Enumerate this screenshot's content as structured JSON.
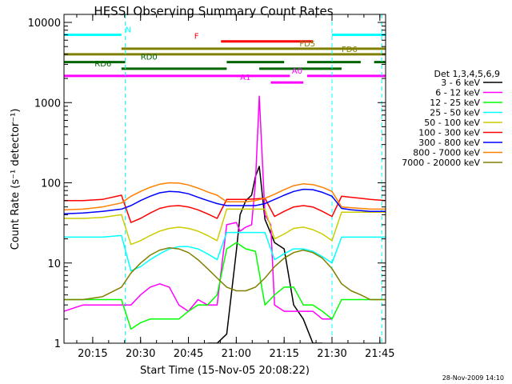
{
  "chart_data": {
    "type": "line",
    "title": "HESSI Observing Summary Count Rates",
    "xlabel": "Start Time (15-Nov-05 20:08:22)",
    "ylabel": "Count Rate (s⁻¹ detector⁻¹)",
    "yscale": "log",
    "ylim": [
      1,
      10000
    ],
    "xlim_minutes": [
      20.1,
      21.78
    ],
    "timestamp": "28-Nov-2009 14:10",
    "x_ticks": [
      {
        "m": 15,
        "label": "20:15"
      },
      {
        "m": 30,
        "label": "20:30"
      },
      {
        "m": 45,
        "label": "20:45"
      },
      {
        "m": 60,
        "label": "21:00"
      },
      {
        "m": 75,
        "label": "21:15"
      },
      {
        "m": 90,
        "label": "21:30"
      },
      {
        "m": 105,
        "label": "21:45"
      }
    ],
    "y_ticks": [
      {
        "v": 1,
        "label": "1"
      },
      {
        "v": 10,
        "label": "10"
      },
      {
        "v": 100,
        "label": "100"
      },
      {
        "v": 1000,
        "label": "1000"
      },
      {
        "v": 10000,
        "label": "10000"
      }
    ],
    "legend": {
      "title": "Det 1,3,4,5,6,9",
      "placement": "right",
      "entries": [
        {
          "label": "3 - 6 keV",
          "color": "#000000"
        },
        {
          "label": "6 - 12 keV",
          "color": "#ff00ff"
        },
        {
          "label": "12 - 25 keV",
          "color": "#00ff00"
        },
        {
          "label": "25 - 50 keV",
          "color": "#00ffff"
        },
        {
          "label": "50 - 100 keV",
          "color": "#cccc00"
        },
        {
          "label": "100 - 300 keV",
          "color": "#ff0000"
        },
        {
          "label": "300 - 800 keV",
          "color": "#0000ff"
        },
        {
          "label": "800 - 7000 keV",
          "color": "#ff8000"
        },
        {
          "label": "7000 - 20000 keV",
          "color": "#808000"
        }
      ]
    },
    "flag_bars": [
      {
        "label": "N",
        "color": "#00ffff",
        "y": 7000,
        "segments": [
          [
            20.1,
            20.4
          ],
          [
            21.5,
            21.78
          ]
        ],
        "label_at": 20.42
      },
      {
        "label": "F",
        "color": "#ff0000",
        "y": 5800,
        "segments": [
          [
            20.92,
            21.4
          ]
        ],
        "label_at": 20.78
      },
      {
        "label": "FD5",
        "color": "#808000",
        "y": 4700,
        "segments": [
          [
            20.4,
            21.78
          ]
        ],
        "label_at": 21.33
      },
      {
        "label": "FD6",
        "color": "#808000",
        "y": 4000,
        "segments": [
          [
            20.1,
            21.78
          ]
        ],
        "label_at": 21.55
      },
      {
        "label": "RD0",
        "color": "#006400",
        "y": 3200,
        "segments": [
          [
            20.1,
            20.42
          ],
          [
            20.95,
            21.25
          ],
          [
            21.37,
            21.65
          ],
          [
            21.72,
            21.78
          ]
        ],
        "label_at": 20.5
      },
      {
        "label": "RD6",
        "color": "#006400",
        "y": 2650,
        "segments": [
          [
            20.4,
            20.95
          ],
          [
            21.12,
            21.55
          ]
        ],
        "label_at": 20.26
      },
      {
        "label": "A0",
        "color": "#ff00ff",
        "y": 2150,
        "segments": [
          [
            20.1,
            21.28
          ],
          [
            21.37,
            21.78
          ]
        ],
        "label_at": 21.29
      },
      {
        "label": "A1",
        "color": "#ff00ff",
        "y": 1780,
        "segments": [
          [
            21.18,
            21.35
          ]
        ],
        "label_at": 21.02
      }
    ],
    "dashed_lines": [
      {
        "x": 20.1,
        "color": "#00ffff"
      },
      {
        "x": 20.42,
        "color": "#00ffff"
      },
      {
        "x": 21.5,
        "color": "#00ffff"
      },
      {
        "x": 21.76,
        "color": "#00ffff"
      }
    ],
    "series": [
      {
        "name": "3 - 6 keV",
        "color": "#000000",
        "x": [
          20.85,
          20.9,
          20.95,
          21.0,
          21.02,
          21.05,
          21.08,
          21.1,
          21.12,
          21.15,
          21.2,
          21.25,
          21.3,
          21.35,
          21.4,
          21.45
        ],
        "y": [
          1,
          1,
          1.3,
          14,
          40,
          60,
          70,
          120,
          160,
          35,
          18,
          15,
          3,
          2,
          1,
          1
        ]
      },
      {
        "name": "6 - 12 keV",
        "color": "#ff00ff",
        "x": [
          20.1,
          20.2,
          20.3,
          20.4,
          20.45,
          20.5,
          20.55,
          20.6,
          20.65,
          20.7,
          20.75,
          20.8,
          20.85,
          20.9,
          20.95,
          21.0,
          21.02,
          21.05,
          21.08,
          21.1,
          21.12,
          21.15,
          21.18,
          21.2,
          21.25,
          21.3,
          21.35,
          21.4,
          21.45,
          21.5
        ],
        "y": [
          2.5,
          3,
          3,
          3,
          3,
          4,
          5,
          5.5,
          5,
          3,
          2.5,
          3.5,
          3,
          3,
          30,
          32,
          25,
          28,
          30,
          100,
          1200,
          40,
          30,
          3,
          2.5,
          2.5,
          2.5,
          2.5,
          2,
          2
        ]
      },
      {
        "name": "12 - 25 keV",
        "color": "#00ff00",
        "x": [
          20.1,
          20.2,
          20.3,
          20.4,
          20.45,
          20.5,
          20.55,
          20.6,
          20.65,
          20.7,
          20.75,
          20.8,
          20.85,
          20.9,
          20.95,
          21.0,
          21.05,
          21.1,
          21.15,
          21.2,
          21.25,
          21.3,
          21.35,
          21.4,
          21.45,
          21.5,
          21.55,
          21.6,
          21.65,
          21.7,
          21.78
        ],
        "y": [
          3.5,
          3.5,
          3.5,
          3.5,
          1.5,
          1.8,
          2,
          2,
          2,
          2,
          2.5,
          3,
          3,
          4,
          15,
          18,
          15,
          14,
          3,
          4,
          5,
          5,
          3,
          3,
          2.5,
          2,
          3.5,
          3.5,
          3.5,
          3.5,
          3.5
        ]
      },
      {
        "name": "25 - 50 keV",
        "color": "#00ffff",
        "x": [
          20.1,
          20.2,
          20.3,
          20.4,
          20.45,
          20.5,
          20.55,
          20.6,
          20.65,
          20.7,
          20.75,
          20.8,
          20.85,
          20.9,
          20.95,
          21.0,
          21.05,
          21.1,
          21.15,
          21.2,
          21.25,
          21.3,
          21.35,
          21.4,
          21.45,
          21.5,
          21.55,
          21.6,
          21.65,
          21.7,
          21.78
        ],
        "y": [
          21,
          21,
          21,
          22,
          8,
          9,
          11,
          13,
          15,
          16,
          16,
          15,
          13,
          11,
          24,
          24,
          24,
          24,
          24,
          11,
          13,
          15,
          15,
          14,
          12,
          10,
          21,
          21,
          21,
          21,
          21
        ]
      },
      {
        "name": "50 - 100 keV",
        "color": "#cccc00",
        "x": [
          20.1,
          20.2,
          20.3,
          20.4,
          20.45,
          20.5,
          20.55,
          20.6,
          20.65,
          20.7,
          20.75,
          20.8,
          20.85,
          20.9,
          20.95,
          21.0,
          21.05,
          21.1,
          21.15,
          21.2,
          21.25,
          21.3,
          21.35,
          21.4,
          21.45,
          21.5,
          21.55,
          21.6,
          21.65,
          21.7,
          21.78
        ],
        "y": [
          36,
          36,
          37,
          40,
          17,
          19,
          22,
          25,
          27,
          28,
          27,
          25,
          22,
          19,
          47,
          47,
          47,
          47,
          47,
          20,
          23,
          27,
          28,
          26,
          23,
          19,
          43,
          43,
          43,
          43,
          43
        ]
      },
      {
        "name": "100 - 300 keV",
        "color": "#ff0000",
        "x": [
          20.1,
          20.2,
          20.3,
          20.4,
          20.45,
          20.5,
          20.55,
          20.6,
          20.65,
          20.7,
          20.75,
          20.8,
          20.85,
          20.9,
          20.95,
          21.0,
          21.05,
          21.1,
          21.15,
          21.2,
          21.25,
          21.3,
          21.35,
          21.4,
          21.45,
          21.5,
          21.55,
          21.6,
          21.65,
          21.7,
          21.78
        ],
        "y": [
          60,
          60,
          62,
          70,
          32,
          36,
          42,
          48,
          51,
          52,
          50,
          46,
          41,
          36,
          62,
          62,
          62,
          63,
          64,
          38,
          44,
          50,
          52,
          50,
          44,
          38,
          68,
          66,
          64,
          62,
          60
        ]
      },
      {
        "name": "300 - 800 keV",
        "color": "#0000ff",
        "x": [
          20.1,
          20.2,
          20.3,
          20.4,
          20.45,
          20.5,
          20.55,
          20.6,
          20.65,
          20.7,
          20.75,
          20.8,
          20.85,
          20.9,
          20.95,
          21.0,
          21.05,
          21.1,
          21.15,
          21.2,
          21.25,
          21.3,
          21.35,
          21.4,
          21.45,
          21.5,
          21.55,
          21.6,
          21.65,
          21.7,
          21.78
        ],
        "y": [
          41,
          42,
          44,
          47,
          52,
          60,
          68,
          75,
          78,
          77,
          73,
          66,
          60,
          55,
          52,
          52,
          52,
          52,
          55,
          62,
          70,
          78,
          83,
          82,
          76,
          68,
          48,
          46,
          45,
          44,
          44
        ]
      },
      {
        "name": "800 - 7000 keV",
        "color": "#ff8000",
        "x": [
          20.1,
          20.2,
          20.3,
          20.4,
          20.45,
          20.5,
          20.55,
          20.6,
          20.65,
          20.7,
          20.75,
          20.8,
          20.85,
          20.9,
          20.95,
          21.0,
          21.05,
          21.1,
          21.15,
          21.2,
          21.25,
          21.3,
          21.35,
          21.4,
          21.45,
          21.5,
          21.55,
          21.6,
          21.65,
          21.7,
          21.78
        ],
        "y": [
          46,
          47,
          50,
          56,
          68,
          78,
          88,
          96,
          100,
          99,
          94,
          86,
          77,
          70,
          58,
          58,
          58,
          60,
          64,
          72,
          82,
          92,
          97,
          95,
          88,
          78,
          50,
          49,
          48,
          47,
          47
        ]
      },
      {
        "name": "7000 - 20000 keV",
        "color": "#808000",
        "x": [
          20.1,
          20.2,
          20.3,
          20.4,
          20.45,
          20.5,
          20.55,
          20.6,
          20.65,
          20.7,
          20.75,
          20.8,
          20.85,
          20.9,
          20.95,
          21.0,
          21.05,
          21.1,
          21.15,
          21.2,
          21.25,
          21.3,
          21.35,
          21.4,
          21.45,
          21.5,
          21.55,
          21.6,
          21.65,
          21.7,
          21.78
        ],
        "y": [
          3.5,
          3.5,
          3.8,
          5,
          7.5,
          10,
          12.5,
          14.5,
          15.5,
          15,
          13.5,
          11,
          8.5,
          6.5,
          5,
          4.5,
          4.5,
          5,
          6.5,
          9,
          11.5,
          13.5,
          14.5,
          13.5,
          11.5,
          8.5,
          5.5,
          4.5,
          4,
          3.5,
          3.5
        ]
      }
    ]
  }
}
